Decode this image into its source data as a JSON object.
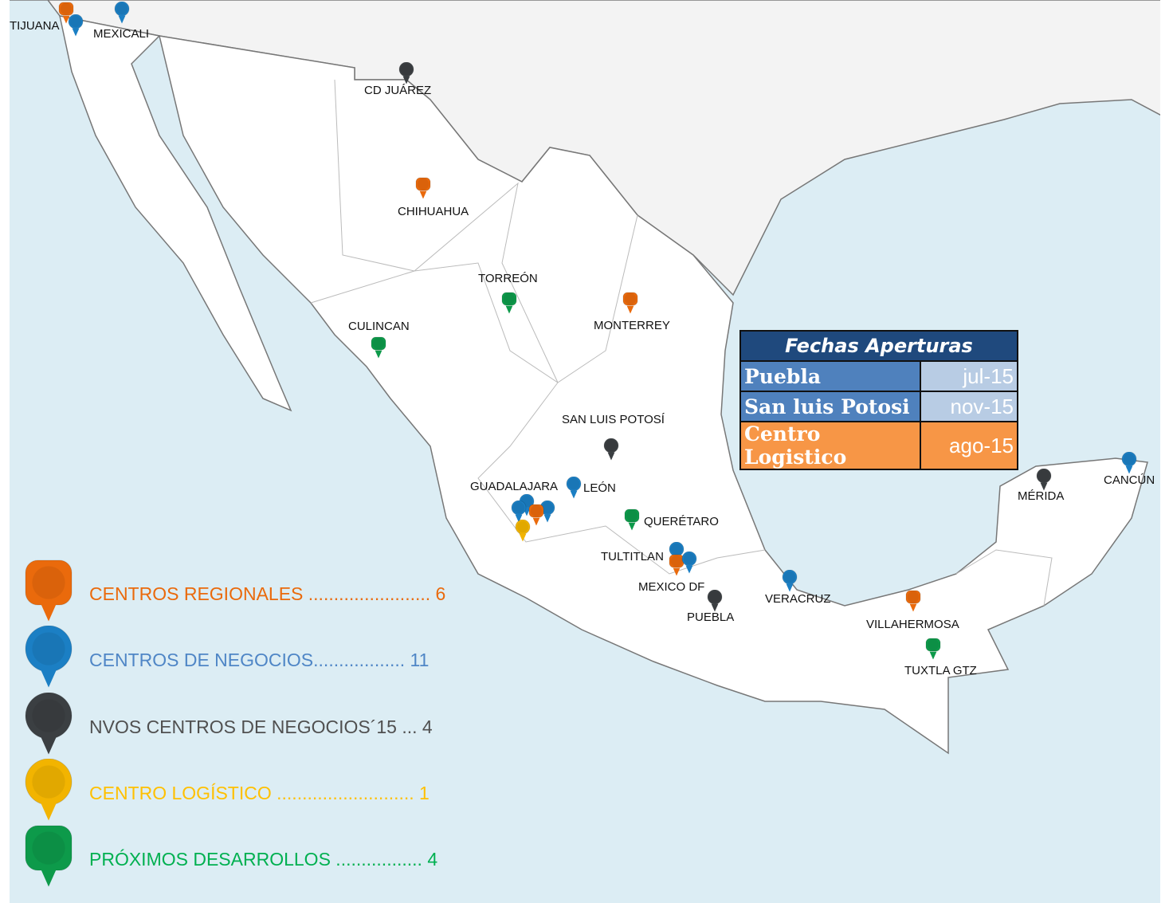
{
  "colors": {
    "regional": "#ea6a0c",
    "negocios": "#1b7fc4",
    "nuevos": "#3b3f42",
    "logistico": "#f2b400",
    "proximos": "#0d9a4a",
    "sea": "#dcedf4"
  },
  "cities": [
    {
      "name": "TIJUANA",
      "type": "regional"
    },
    {
      "name": "MEXICALI",
      "type": "negocios"
    },
    {
      "name": "CD JUÁREZ",
      "type": "nuevos"
    },
    {
      "name": "CHIHUAHUA",
      "type": "regional"
    },
    {
      "name": "TORREÓN",
      "type": "proximos"
    },
    {
      "name": "MONTERREY",
      "type": "regional"
    },
    {
      "name": "CULINCAN",
      "type": "proximos"
    },
    {
      "name": "SAN LUIS POTOSÍ",
      "type": "nuevos"
    },
    {
      "name": "GUADALAJARA",
      "type": "negocios"
    },
    {
      "name": "LEÓN",
      "type": "negocios"
    },
    {
      "name": "QUERÉTARO",
      "type": "proximos"
    },
    {
      "name": "TULTITLAN",
      "type": "negocios"
    },
    {
      "name": "MEXICO DF",
      "type": "regional"
    },
    {
      "name": "PUEBLA",
      "type": "nuevos"
    },
    {
      "name": "VERACRUZ",
      "type": "negocios"
    },
    {
      "name": "VILLAHERMOSA",
      "type": "regional"
    },
    {
      "name": "TUXTLA GTZ",
      "type": "proximos"
    },
    {
      "name": "MÉRIDA",
      "type": "nuevos"
    },
    {
      "name": "CANCÚN",
      "type": "negocios"
    }
  ],
  "table": {
    "title": "Fechas Aperturas",
    "rows": [
      {
        "name": "Puebla",
        "date": "jul-15",
        "name_color": "#4f81bd",
        "date_color": "#b8cce4"
      },
      {
        "name": "San luis Potosi",
        "date": "nov-15",
        "name_color": "#4f81bd",
        "date_color": "#b8cce4"
      },
      {
        "name": "Centro Logistico",
        "date": "ago-15",
        "name_color": "#f79646",
        "date_color": "#f79646"
      }
    ]
  },
  "legend": [
    {
      "label": "CENTROS REGIONALES ........................ 6",
      "type": "regional",
      "text_color": "#ea6a0c"
    },
    {
      "label": "CENTROS DE NEGOCIOS.................. 11",
      "type": "negocios",
      "text_color": "#4f86c6"
    },
    {
      "label": "NVOS CENTROS DE NEGOCIOS´15 ... 4",
      "type": "nuevos",
      "text_color": "#505050"
    },
    {
      "label": "CENTRO LOGÍSTICO ........................... 1",
      "type": "logistico",
      "text_color": "#ffc000"
    },
    {
      "label": "PRÓXIMOS DESARROLLOS ................. 4",
      "type": "proximos",
      "text_color": "#00b050"
    }
  ]
}
